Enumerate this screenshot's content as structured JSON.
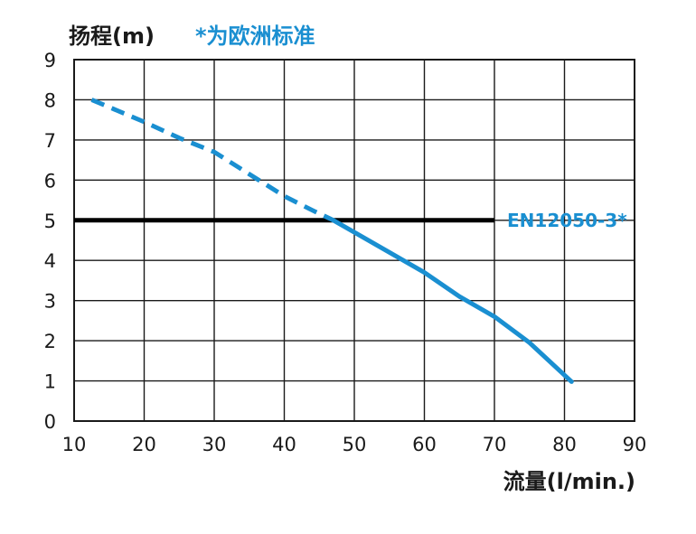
{
  "chart_data": {
    "type": "line",
    "ylabel": "扬程(m)",
    "xlabel": "流量(l/min.)",
    "note": "*为欧洲标准",
    "xlim": [
      10,
      90
    ],
    "ylim": [
      0,
      9
    ],
    "x_ticks": [
      10,
      20,
      30,
      40,
      50,
      60,
      70,
      80,
      90
    ],
    "y_ticks": [
      0,
      1,
      2,
      3,
      4,
      5,
      6,
      7,
      8,
      9
    ],
    "grid": true,
    "series": [
      {
        "color": "#1a8fd1",
        "dashed_until_x": 47,
        "points": [
          [
            12.5,
            8.0
          ],
          [
            20,
            7.45
          ],
          [
            25,
            7.05
          ],
          [
            30,
            6.7
          ],
          [
            35,
            6.15
          ],
          [
            40,
            5.6
          ],
          [
            44,
            5.25
          ],
          [
            47,
            5.0
          ],
          [
            50,
            4.7
          ],
          [
            55,
            4.2
          ],
          [
            60,
            3.7
          ],
          [
            65,
            3.1
          ],
          [
            70,
            2.6
          ],
          [
            75,
            1.95
          ],
          [
            81,
            0.98
          ]
        ]
      }
    ],
    "reference_lines": [
      {
        "label": "EN12050-3*",
        "y": 5.0,
        "x_start": 10,
        "x_end": 70,
        "color": "#000000"
      }
    ]
  }
}
